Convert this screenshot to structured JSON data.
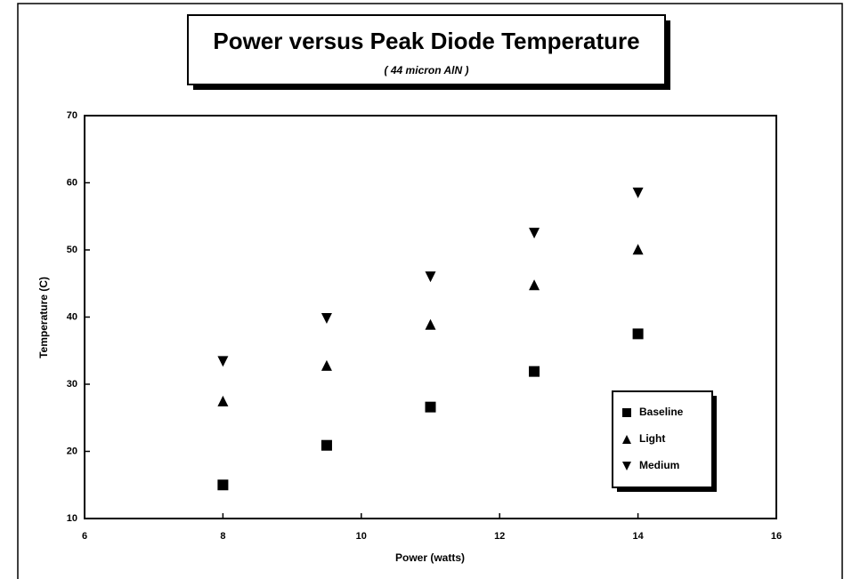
{
  "chart_data": {
    "type": "scatter",
    "title": "Power versus Peak Diode Temperature",
    "subtitle": "( 44 micron AlN )",
    "xlabel": "Power (watts)",
    "ylabel": "Temperature  (C)",
    "x": [
      8,
      9.5,
      11,
      12.5,
      14
    ],
    "series": [
      {
        "name": "Baseline",
        "color": "#000000",
        "marker": "square",
        "values": [
          15.0,
          20.9,
          26.6,
          31.9,
          37.5
        ]
      },
      {
        "name": "Light",
        "color": "#000000",
        "marker": "triangle-up",
        "values": [
          27.5,
          32.8,
          38.9,
          44.8,
          50.1
        ]
      },
      {
        "name": "Medium",
        "color": "#000000",
        "marker": "triangle-down",
        "values": [
          33.4,
          39.8,
          46.0,
          52.5,
          58.5
        ]
      }
    ],
    "xlim": [
      6,
      16
    ],
    "xticks": [
      6,
      8,
      10,
      12,
      14,
      16
    ],
    "ylim": [
      10,
      70
    ],
    "yticks": [
      10,
      20,
      30,
      40,
      50,
      60,
      70
    ],
    "grid": false,
    "legend": "lower right"
  }
}
